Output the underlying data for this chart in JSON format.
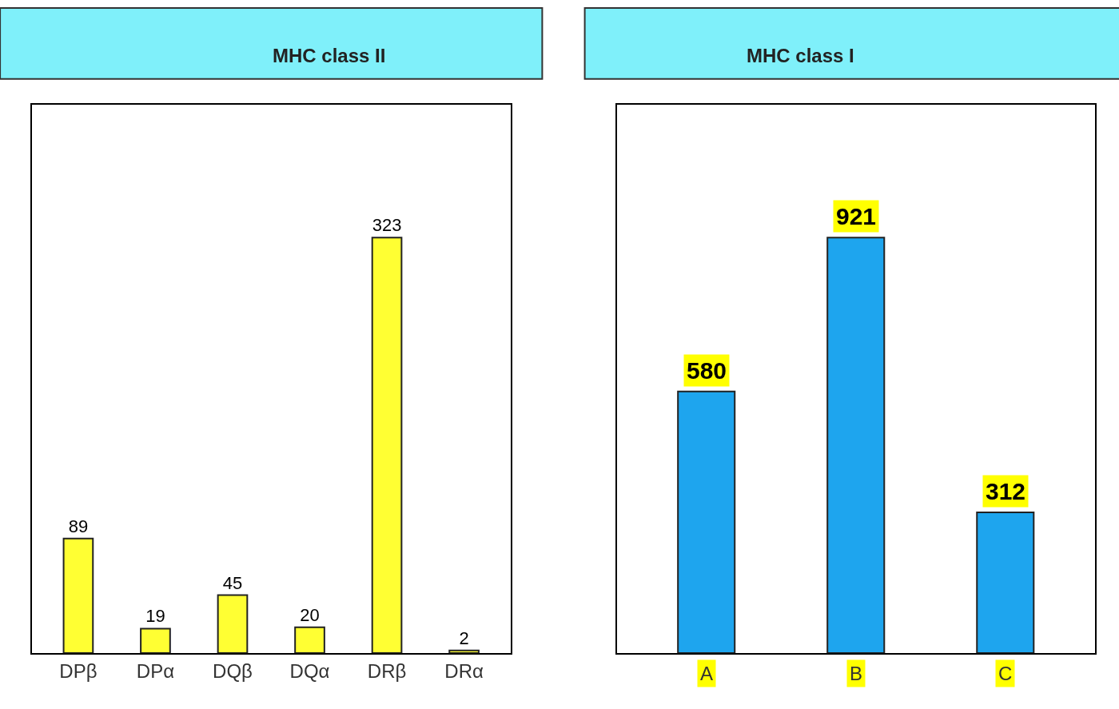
{
  "chart_data": [
    {
      "type": "bar",
      "title": "MHC class II",
      "categories": [
        "DPβ",
        "DPα",
        "DQβ",
        "DQα",
        "DRβ",
        "DRα"
      ],
      "values": [
        89,
        19,
        45,
        20,
        323,
        2
      ],
      "color": "#ffff33",
      "data_labels": true
    },
    {
      "type": "bar",
      "title": "MHC class I",
      "categories": [
        "A",
        "B",
        "C"
      ],
      "values": [
        580,
        921,
        312
      ],
      "color": "#1ea5ee",
      "data_labels": true
    }
  ]
}
